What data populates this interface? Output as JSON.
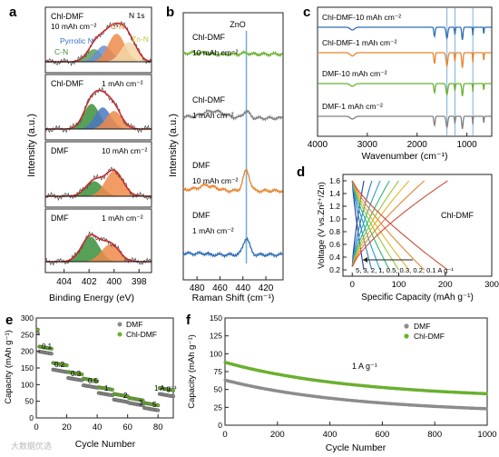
{
  "figure": {
    "watermark": "大数据优选"
  },
  "chart_data": [
    {
      "id": "a",
      "panel_label": "a",
      "type": "line",
      "xlabel": "Binding Energy (eV)",
      "ylabel": "Intensity (a.u.)",
      "xlim": [
        405.5,
        397.0
      ],
      "xticks": [
        404,
        402,
        400,
        398
      ],
      "reversed_x": true,
      "peak_labels": [
        {
          "text": "Pyrrolic N",
          "color": "#3a6fc4"
        },
        {
          "text": "C-N",
          "color": "#e8762b"
        },
        {
          "text": "C-N",
          "color": "#3b8e3b"
        },
        {
          "text": "Zn-N",
          "color": "#c9c24a"
        },
        {
          "text": "N 1s",
          "color": "#111111"
        }
      ],
      "series": [
        {
          "name": "Chl-DMF 10 mAh cm⁻²",
          "label_lines": [
            "Chl-DMF",
            "10 mAh cm⁻²"
          ],
          "components": [
            {
              "label": "C-N",
              "center": 401.6,
              "height": 0.35,
              "width": 0.85,
              "color": "#5aa05a"
            },
            {
              "label": "Pyrrolic N",
              "center": 400.8,
              "height": 0.45,
              "width": 0.9,
              "color": "#6a8fd0"
            },
            {
              "label": "C-N",
              "center": 399.8,
              "height": 0.78,
              "width": 0.95,
              "color": "#ef8a4a"
            },
            {
              "label": "Zn-N",
              "center": 398.8,
              "height": 0.55,
              "width": 0.9,
              "color": "#f2d7a8"
            }
          ]
        },
        {
          "name": "Chl-DMF 1 mAh cm⁻²",
          "label_lines": [
            "Chl-DMF",
            "1 mAh cm⁻²"
          ],
          "components": [
            {
              "label": "C-N",
              "center": 401.8,
              "height": 0.7,
              "width": 0.9,
              "color": "#3b8e3b"
            },
            {
              "label": "Pyrrolic N",
              "center": 400.9,
              "height": 0.6,
              "width": 0.9,
              "color": "#4a77c0"
            },
            {
              "label": "C-N",
              "center": 400.0,
              "height": 0.5,
              "width": 0.9,
              "color": "#ef8a4a"
            }
          ]
        },
        {
          "name": "DMF 10 mAh cm⁻²",
          "label_lines": [
            "DMF",
            "10 mAh cm⁻²"
          ],
          "components": [
            {
              "label": "C-N",
              "center": 401.6,
              "height": 0.42,
              "width": 0.95,
              "color": "#3b8e3b"
            },
            {
              "label": "C-N",
              "center": 400.0,
              "height": 0.7,
              "width": 1.0,
              "color": "#ef8a4a"
            }
          ]
        },
        {
          "name": "DMF 1 mAh cm⁻²",
          "label_lines": [
            "DMF",
            "1 mAh cm⁻²"
          ],
          "components": [
            {
              "label": "C-N",
              "center": 401.9,
              "height": 0.72,
              "width": 1.0,
              "color": "#3b8e3b"
            },
            {
              "label": "C-N",
              "center": 400.3,
              "height": 0.5,
              "width": 1.0,
              "color": "#ef8a4a"
            }
          ]
        }
      ]
    },
    {
      "id": "b",
      "panel_label": "b",
      "type": "line",
      "xlabel": "Raman Shift (cm⁻¹)",
      "ylabel": "Intensity (a.u.)",
      "xlim": [
        492,
        405
      ],
      "xticks": [
        480,
        460,
        440,
        420
      ],
      "reversed_x": true,
      "reference_line": {
        "label": "ZnO",
        "x": 437,
        "color": "#7ab0d8"
      },
      "series": [
        {
          "name": "Chl-DMF 10 mAh cm⁻²",
          "label_lines": [
            "Chl-DMF",
            "10 mAh cm⁻²"
          ],
          "color": "#6ab030",
          "offset": 3.6,
          "peak": 0.02
        },
        {
          "name": "Chl-DMF 1 mAh cm⁻²",
          "label_lines": [
            "Chl-DMF",
            "1 mAh cm⁻²"
          ],
          "color": "#808080",
          "offset": 2.5,
          "peak": 0.12
        },
        {
          "name": "DMF 10 mAh cm⁻²",
          "label_lines": [
            "DMF",
            "10 mAh cm⁻²"
          ],
          "color": "#e8842e",
          "offset": 1.25,
          "peak": 0.35
        },
        {
          "name": "DMF 1 mAh cm⁻²",
          "label_lines": [
            "DMF",
            "1 mAh cm⁻²"
          ],
          "color": "#2e6db4",
          "offset": 0.15,
          "peak": 0.28
        }
      ]
    },
    {
      "id": "c",
      "panel_label": "c",
      "type": "line",
      "xlabel": "Wavenumber (cm⁻¹)",
      "xlim": [
        4000,
        500
      ],
      "xticks": [
        4000,
        3000,
        2000,
        1000
      ],
      "reversed_x": true,
      "band_lines": [
        1400,
        1240,
        880
      ],
      "series": [
        {
          "name": "Chl-DMF-10 mAh cm⁻²",
          "color": "#2e6db4",
          "offset": 3
        },
        {
          "name": "Chl-DMF-1 mAh cm⁻²",
          "color": "#e8842e",
          "offset": 2
        },
        {
          "name": "DMF-10 mAh cm⁻²",
          "color": "#6ab030",
          "offset": 1
        },
        {
          "name": "DMF-1 mAh cm⁻²",
          "color": "#808080",
          "offset": 0
        }
      ]
    },
    {
      "id": "d",
      "panel_label": "d",
      "type": "line",
      "xlabel": "Specific Capacity (mAh g⁻¹)",
      "ylabel": "Voltage (V vs.Zn²⁺/Zn)",
      "xlim": [
        -20,
        300
      ],
      "ylim": [
        0.1,
        1.7
      ],
      "xticks": [
        0,
        100,
        200,
        300
      ],
      "yticks": [
        0.2,
        0.4,
        0.6,
        0.8,
        1.0,
        1.2,
        1.4,
        1.6
      ],
      "series_label": "Chl-DMF",
      "rate_label": "5, 3, 2, 1, 0.5, 0.3, 0.2, 0.1 A g⁻¹",
      "rates": [
        5,
        3,
        2,
        1,
        0.5,
        0.3,
        0.2,
        0.1
      ],
      "capacities": [
        25,
        42,
        60,
        80,
        100,
        122,
        155,
        205
      ],
      "colors": [
        "#1f3f99",
        "#2f78c0",
        "#29a0c8",
        "#2fb57a",
        "#9ac43a",
        "#e0b52a",
        "#e8842e",
        "#d04a3a"
      ]
    },
    {
      "id": "e",
      "panel_label": "e",
      "type": "scatter",
      "xlabel": "Cycle Number",
      "ylabel": "Capacity (mAh g⁻¹)",
      "xlim": [
        0,
        90
      ],
      "ylim": [
        0,
        300
      ],
      "xticks": [
        0,
        20,
        40,
        60,
        80
      ],
      "yticks": [
        0,
        50,
        100,
        150,
        200,
        250,
        300
      ],
      "legend_position": "top-right",
      "rate_labels": [
        "0.1",
        "0.2",
        "0.3",
        "0.5",
        "1",
        "2",
        "3",
        "5",
        "1 A g⁻¹"
      ],
      "segments": [
        {
          "rate": "0.1",
          "cycles": [
            1,
            10
          ],
          "dmf": 200,
          "chl": 215
        },
        {
          "rate": "0.2",
          "cycles": [
            11,
            20
          ],
          "dmf": 145,
          "chl": 165
        },
        {
          "rate": "0.3",
          "cycles": [
            21,
            30
          ],
          "dmf": 120,
          "chl": 138
        },
        {
          "rate": "0.5",
          "cycles": [
            31,
            40
          ],
          "dmf": 98,
          "chl": 118
        },
        {
          "rate": "1",
          "cycles": [
            41,
            50
          ],
          "dmf": 75,
          "chl": 92
        },
        {
          "rate": "2",
          "cycles": [
            51,
            60
          ],
          "dmf": 55,
          "chl": 72
        },
        {
          "rate": "3",
          "cycles": [
            61,
            70
          ],
          "dmf": 45,
          "chl": 60
        },
        {
          "rate": "5",
          "cycles": [
            71,
            80
          ],
          "dmf": 30,
          "chl": 45
        },
        {
          "rate": "1",
          "cycles": [
            81,
            90
          ],
          "dmf": 72,
          "chl": 90
        }
      ],
      "first_cycle": {
        "dmf": 255,
        "chl": 265
      },
      "series": [
        {
          "name": "DMF",
          "color": "#8c8c8c"
        },
        {
          "name": "Chl-DMF",
          "color": "#6ab030"
        }
      ]
    },
    {
      "id": "f",
      "panel_label": "f",
      "type": "scatter",
      "xlabel": "Cycle Number",
      "ylabel": "Capacity (mAh g⁻¹)",
      "xlim": [
        0,
        1000
      ],
      "ylim": [
        0,
        150
      ],
      "xticks": [
        0,
        200,
        400,
        600,
        800,
        1000
      ],
      "yticks": [
        0,
        25,
        50,
        75,
        100,
        125,
        150
      ],
      "legend_position": "top-right",
      "annotation": "1 A g⁻¹",
      "series": [
        {
          "name": "DMF",
          "color": "#8c8c8c",
          "start": 63,
          "end": 23
        },
        {
          "name": "Chl-DMF",
          "color": "#6ab030",
          "start": 88,
          "end": 44
        }
      ]
    }
  ]
}
